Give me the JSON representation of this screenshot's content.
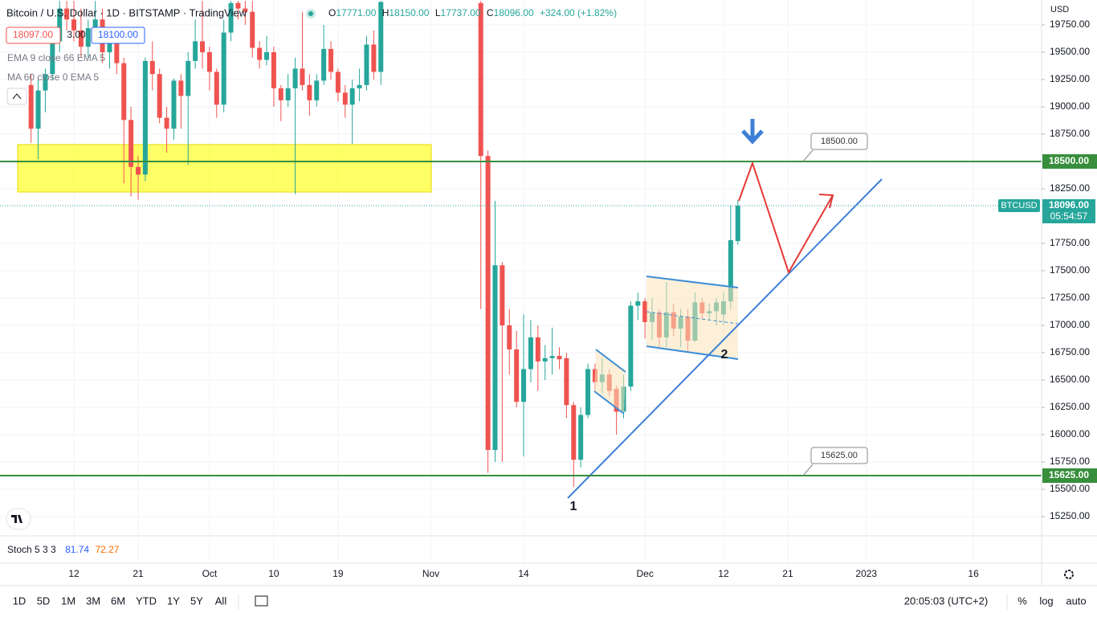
{
  "chart_data": {
    "type": "candlestick",
    "title": "Bitcoin / U.S. Dollar · 1D · BITSTAMP · TradingView",
    "legend": {
      "o": "O",
      "open": "17771.00",
      "h": "H",
      "high": "18150.00",
      "l": "L",
      "low": "17737.00",
      "c": "C",
      "close": "18096.00",
      "change": "+324.00 (+1.82%)"
    },
    "trade": {
      "bid": "18097.00",
      "spread": "3.00",
      "ask": "18100.00"
    },
    "indicators": [
      "EMA 9 close 66 EMA 5",
      "MA 60 close 0 EMA 5"
    ],
    "currency": "USD",
    "symbol": "BTCUSD",
    "last_price": "18096.00",
    "countdown": "05:54:57",
    "up_color": "#26a69a",
    "down_color": "#ef5350",
    "grid": true,
    "x": [
      -6,
      -5,
      -4,
      -3,
      -2,
      -1,
      0,
      1,
      2,
      3,
      4,
      5,
      6,
      7,
      8,
      9,
      10,
      11,
      12,
      13,
      14,
      15,
      16,
      17,
      18,
      19,
      20,
      21,
      22,
      23,
      24,
      25,
      26,
      27,
      28,
      29,
      30,
      31,
      32,
      33,
      34,
      35,
      36,
      37,
      38,
      39,
      40,
      41,
      42,
      43,
      57,
      58,
      59,
      60,
      61,
      62,
      63,
      64,
      65,
      66,
      67,
      68,
      69,
      70,
      71,
      72,
      73,
      74,
      75,
      76,
      77,
      78,
      79,
      80,
      81,
      82,
      83,
      84,
      85,
      86,
      87,
      88,
      89,
      90,
      91,
      92,
      93
    ],
    "open": [
      19200,
      18800,
      19150,
      19300,
      19600,
      19900,
      19800,
      19700,
      19550,
      19720,
      19800,
      19500,
      19600,
      19400,
      18880,
      18450,
      18380,
      19420,
      19300,
      18900,
      18800,
      19240,
      19100,
      19420,
      19600,
      19500,
      19320,
      19020,
      19680,
      19950,
      19900,
      19870,
      19540,
      19430,
      19500,
      19170,
      19060,
      19170,
      19350,
      19200,
      19060,
      19240,
      19530,
      19320,
      19130,
      19020,
      19170,
      19200,
      19570,
      19320,
      19950,
      18550,
      15860,
      17550,
      17000,
      16780,
      16300,
      16600,
      16890,
      16670,
      16700,
      16720,
      16700,
      16270,
      15770,
      16180,
      16600,
      16480,
      16550,
      16420,
      16210,
      16440,
      17180,
      17220,
      17030,
      17120,
      16890,
      17120,
      16970,
      17080,
      16860,
      17210,
      17110,
      17130,
      17100,
      17220,
      17771
    ],
    "high": [
      19300,
      19250,
      19350,
      19700,
      19970,
      19970,
      19970,
      19900,
      19800,
      19970,
      19900,
      19700,
      19700,
      19450,
      19000,
      18550,
      19450,
      19600,
      19350,
      19000,
      19260,
      19300,
      19500,
      19800,
      19970,
      19550,
      19350,
      19800,
      19970,
      19970,
      19970,
      19970,
      19600,
      19650,
      19550,
      19200,
      19300,
      19450,
      19870,
      19300,
      19300,
      19750,
      19600,
      19350,
      19200,
      19250,
      19350,
      19650,
      19700,
      19970,
      19970,
      18600,
      18140,
      17580,
      17150,
      16950,
      17100,
      17050,
      17000,
      16820,
      16980,
      16800,
      16750,
      16300,
      16250,
      16650,
      16650,
      16700,
      16600,
      16450,
      16550,
      17220,
      17300,
      17250,
      17250,
      17150,
      17400,
      17200,
      17150,
      17150,
      17300,
      17250,
      17200,
      17250,
      17300,
      18100,
      18150
    ],
    "low": [
      18670,
      18520,
      18950,
      19250,
      19500,
      19700,
      19600,
      19450,
      19450,
      19600,
      19400,
      19350,
      19300,
      18300,
      18180,
      18150,
      18320,
      19150,
      18850,
      18580,
      18700,
      18800,
      18470,
      19350,
      19350,
      19150,
      18900,
      18950,
      19600,
      19800,
      19750,
      19450,
      19350,
      19380,
      19000,
      18870,
      19000,
      18200,
      19150,
      18920,
      19000,
      19200,
      19250,
      19050,
      18900,
      18660,
      19050,
      19150,
      19250,
      19200,
      17150,
      15650,
      15750,
      15750,
      16550,
      16250,
      15800,
      16480,
      16400,
      16500,
      16550,
      16600,
      16150,
      15520,
      15700,
      16150,
      16400,
      16380,
      16350,
      16000,
      16150,
      16400,
      17050,
      16880,
      16870,
      16800,
      16800,
      16900,
      16800,
      16750,
      16850,
      17050,
      17050,
      17000,
      17000,
      17150,
      17737
    ],
    "close": [
      18800,
      19150,
      19300,
      19600,
      19900,
      19800,
      19700,
      19550,
      19720,
      19800,
      19500,
      19600,
      19400,
      18880,
      18450,
      18380,
      19420,
      19300,
      18900,
      18800,
      19240,
      19100,
      19420,
      19600,
      19500,
      19320,
      19020,
      19680,
      19950,
      19900,
      19870,
      19540,
      19430,
      19500,
      19170,
      19060,
      19170,
      19350,
      19200,
      19060,
      19240,
      19530,
      19320,
      19130,
      19020,
      19170,
      19200,
      19570,
      19320,
      19960,
      18550,
      15860,
      17550,
      17000,
      16780,
      16300,
      16600,
      16890,
      16670,
      16700,
      16720,
      16690,
      16270,
      15770,
      16180,
      16600,
      16480,
      16550,
      16400,
      16210,
      16440,
      17180,
      17220,
      17030,
      17120,
      16890,
      17120,
      16970,
      17080,
      16860,
      17210,
      17110,
      17130,
      17210,
      17220,
      17780,
      18096
    ],
    "xlim": [
      -10.35,
      135.55
    ],
    "xticks": [
      {
        "value": 0,
        "label": "12"
      },
      {
        "value": 9,
        "label": "21"
      },
      {
        "value": 19,
        "label": "Oct"
      },
      {
        "value": 28,
        "label": "10"
      },
      {
        "value": 37,
        "label": "19"
      },
      {
        "value": 50,
        "label": "Nov"
      },
      {
        "value": 63,
        "label": "14"
      },
      {
        "value": 80,
        "label": "Dec"
      },
      {
        "value": 91,
        "label": "12"
      },
      {
        "value": 100,
        "label": "21"
      },
      {
        "value": 111,
        "label": "2023"
      },
      {
        "value": 126,
        "label": "16"
      }
    ],
    "ylim": [
      15073.5,
      19978
    ],
    "yticks": [
      {
        "value": 19750,
        "label": "19750.00"
      },
      {
        "value": 19500,
        "label": "19500.00"
      },
      {
        "value": 19250,
        "label": "19250.00"
      },
      {
        "value": 19000,
        "label": "19000.00"
      },
      {
        "value": 18750,
        "label": "18750.00"
      },
      {
        "value": 18250,
        "label": "18250.00"
      },
      {
        "value": 17750,
        "label": "17750.00"
      },
      {
        "value": 17500,
        "label": "17500.00"
      },
      {
        "value": 17250,
        "label": "17250.00"
      },
      {
        "value": 17000,
        "label": "17000.00"
      },
      {
        "value": 16750,
        "label": "16750.00"
      },
      {
        "value": 16500,
        "label": "16500.00"
      },
      {
        "value": 16250,
        "label": "16250.00"
      },
      {
        "value": 16000,
        "label": "16000.00"
      },
      {
        "value": 15750,
        "label": "15750.00"
      },
      {
        "value": 15500,
        "label": "15500.00"
      },
      {
        "value": 15250,
        "label": "15250.00"
      }
    ],
    "levels": [
      {
        "value": 18500,
        "label": "18500.00",
        "color": "#388e3c"
      },
      {
        "value": 15625,
        "label": "15625.00",
        "color": "#388e3c"
      }
    ],
    "points": [
      "1",
      "2"
    ],
    "stoch": {
      "name": "Stoch 5 3 3",
      "k": "81.74",
      "d": "72.27"
    }
  },
  "toolbar": {
    "ranges": [
      "1D",
      "5D",
      "1M",
      "3M",
      "6M",
      "YTD",
      "1Y",
      "5Y",
      "All"
    ],
    "time": "20:05:03 (UTC+2)",
    "options": [
      "%",
      "log",
      "auto"
    ]
  }
}
